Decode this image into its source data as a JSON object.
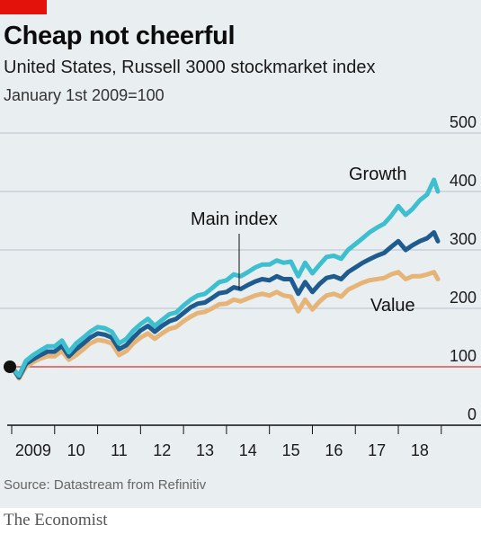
{
  "header": {
    "title": "Cheap not cheerful",
    "subtitle": "United States, Russell 3000 stockmarket index",
    "index_note": "January 1st 2009=100"
  },
  "footer": {
    "source": "Source: Datastream from Refinitiv",
    "brand": "The Economist"
  },
  "colors": {
    "background": "#e9eef1",
    "brand_red": "#e3120b",
    "growth": "#3ebfcf",
    "main_index": "#1e5c8f",
    "value": "#e6b476",
    "baseline": "#d9514a",
    "grid": "#b9c3c9"
  },
  "chart_data": {
    "type": "line",
    "title": "Cheap not cheerful",
    "subtitle": "United States, Russell 3000 stockmarket index",
    "ylabel": "January 1st 2009=100",
    "xlabel": "",
    "ylim": [
      0,
      500
    ],
    "xlim": [
      2009,
      2019
    ],
    "y_ticks": [
      0,
      100,
      200,
      300,
      400,
      500
    ],
    "x_ticks": [
      {
        "label": "2009",
        "value": 2009.5
      },
      {
        "label": "10",
        "value": 2010.5
      },
      {
        "label": "11",
        "value": 2011.5
      },
      {
        "label": "12",
        "value": 2012.5
      },
      {
        "label": "13",
        "value": 2013.5
      },
      {
        "label": "14",
        "value": 2014.5
      },
      {
        "label": "15",
        "value": 2015.5
      },
      {
        "label": "16",
        "value": 2016.5
      },
      {
        "label": "17",
        "value": 2017.5
      },
      {
        "label": "18",
        "value": 2018.5
      }
    ],
    "grid": true,
    "reference_line": 100,
    "start_point": {
      "x": 2009.0,
      "y": 100
    },
    "x": [
      2009.0,
      2009.17,
      2009.33,
      2009.5,
      2009.67,
      2009.83,
      2010.0,
      2010.17,
      2010.33,
      2010.5,
      2010.67,
      2010.83,
      2011.0,
      2011.17,
      2011.33,
      2011.5,
      2011.67,
      2011.83,
      2012.0,
      2012.17,
      2012.33,
      2012.5,
      2012.67,
      2012.83,
      2013.0,
      2013.17,
      2013.33,
      2013.5,
      2013.67,
      2013.83,
      2014.0,
      2014.17,
      2014.33,
      2014.5,
      2014.67,
      2014.83,
      2015.0,
      2015.17,
      2015.33,
      2015.5,
      2015.67,
      2015.83,
      2016.0,
      2016.17,
      2016.33,
      2016.5,
      2016.67,
      2016.83,
      2017.0,
      2017.17,
      2017.33,
      2017.5,
      2017.67,
      2017.83,
      2018.0,
      2018.17,
      2018.33,
      2018.5,
      2018.67,
      2018.83,
      2018.92
    ],
    "series": [
      {
        "name": "Growth",
        "values": [
          100,
          85,
          110,
          120,
          128,
          135,
          135,
          145,
          125,
          140,
          150,
          160,
          168,
          166,
          160,
          140,
          148,
          162,
          173,
          182,
          170,
          180,
          190,
          193,
          205,
          215,
          222,
          225,
          235,
          245,
          248,
          258,
          255,
          262,
          270,
          275,
          275,
          282,
          278,
          280,
          255,
          278,
          260,
          275,
          288,
          290,
          285,
          300,
          310,
          320,
          330,
          338,
          345,
          358,
          375,
          360,
          370,
          385,
          395,
          420,
          400
        ]
      },
      {
        "name": "Main index",
        "values": [
          100,
          82,
          105,
          113,
          120,
          126,
          126,
          136,
          118,
          130,
          140,
          150,
          157,
          155,
          150,
          130,
          137,
          150,
          162,
          170,
          160,
          170,
          178,
          182,
          192,
          202,
          208,
          210,
          218,
          226,
          228,
          236,
          233,
          240,
          246,
          250,
          248,
          255,
          250,
          250,
          225,
          245,
          228,
          242,
          252,
          255,
          250,
          262,
          270,
          278,
          284,
          290,
          295,
          305,
          315,
          300,
          308,
          315,
          320,
          330,
          315
        ]
      },
      {
        "name": "Value",
        "values": [
          100,
          80,
          100,
          108,
          114,
          118,
          118,
          127,
          112,
          120,
          130,
          140,
          146,
          144,
          140,
          120,
          127,
          140,
          150,
          157,
          148,
          157,
          165,
          168,
          178,
          186,
          192,
          194,
          200,
          207,
          208,
          215,
          212,
          217,
          222,
          225,
          222,
          228,
          222,
          220,
          195,
          215,
          198,
          212,
          222,
          225,
          220,
          232,
          238,
          244,
          248,
          250,
          252,
          258,
          262,
          250,
          255,
          255,
          258,
          262,
          250
        ]
      }
    ]
  }
}
